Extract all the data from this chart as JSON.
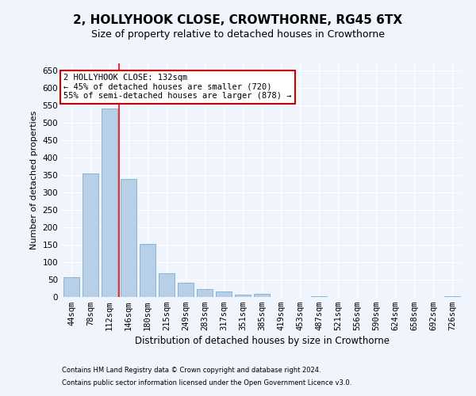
{
  "title1": "2, HOLLYHOOK CLOSE, CROWTHORNE, RG45 6TX",
  "title2": "Size of property relative to detached houses in Crowthorne",
  "xlabel": "Distribution of detached houses by size in Crowthorne",
  "ylabel": "Number of detached properties",
  "categories": [
    "44sqm",
    "78sqm",
    "112sqm",
    "146sqm",
    "180sqm",
    "215sqm",
    "249sqm",
    "283sqm",
    "317sqm",
    "351sqm",
    "385sqm",
    "419sqm",
    "453sqm",
    "487sqm",
    "521sqm",
    "556sqm",
    "590sqm",
    "624sqm",
    "658sqm",
    "692sqm",
    "726sqm"
  ],
  "values": [
    57,
    355,
    540,
    338,
    153,
    68,
    42,
    23,
    17,
    6,
    8,
    0,
    0,
    3,
    0,
    0,
    1,
    0,
    0,
    0,
    2
  ],
  "bar_color": "#b8cfe8",
  "bar_edge_color": "#7aadd4",
  "red_line_x": 2.5,
  "annotation_text": "2 HOLLYHOOK CLOSE: 132sqm\n← 45% of detached houses are smaller (720)\n55% of semi-detached houses are larger (878) →",
  "annotation_box_color": "#ffffff",
  "annotation_box_edge": "#cc0000",
  "ylim": [
    0,
    670
  ],
  "yticks": [
    0,
    50,
    100,
    150,
    200,
    250,
    300,
    350,
    400,
    450,
    500,
    550,
    600,
    650
  ],
  "footer1": "Contains HM Land Registry data © Crown copyright and database right 2024.",
  "footer2": "Contains public sector information licensed under the Open Government Licence v3.0.",
  "background_color": "#f0f4fc",
  "plot_bg_color": "#f0f4fc",
  "grid_color": "#ffffff",
  "title1_fontsize": 11,
  "title2_fontsize": 9,
  "xlabel_fontsize": 8.5,
  "ylabel_fontsize": 8,
  "tick_fontsize": 7.5,
  "annotation_fontsize": 7.5,
  "footer_fontsize": 6
}
